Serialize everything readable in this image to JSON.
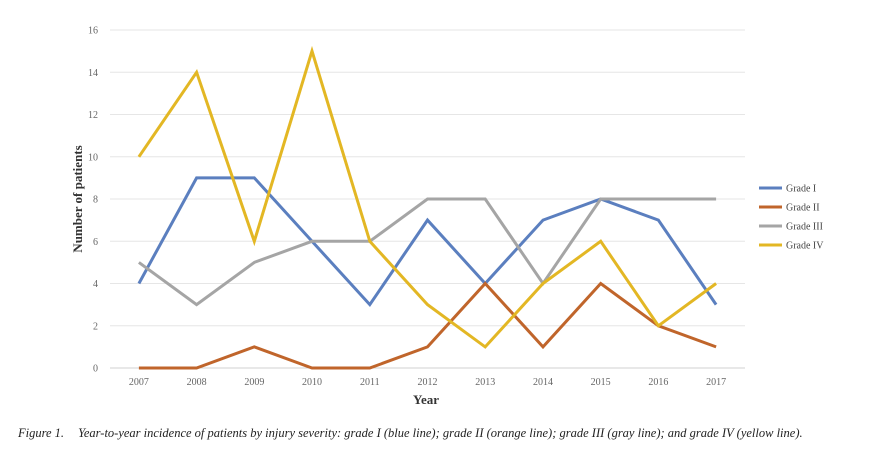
{
  "chart_data": {
    "type": "line",
    "xlabel": "Year",
    "ylabel": "Number of patients",
    "ylim": [
      0,
      16
    ],
    "yticks": [
      0,
      2,
      4,
      6,
      8,
      10,
      12,
      14,
      16
    ],
    "grid": "horizontal",
    "legend_position": "right",
    "categories": [
      "2007",
      "2008",
      "2009",
      "2010",
      "2011",
      "2012",
      "2013",
      "2014",
      "2015",
      "2016",
      "2017"
    ],
    "series": [
      {
        "name": "Grade I",
        "color": "#5b7fbf",
        "values": [
          4,
          9,
          9,
          6,
          3,
          7,
          4,
          7,
          8,
          7,
          3
        ]
      },
      {
        "name": "Grade II",
        "color": "#c0652b",
        "values": [
          0,
          0,
          1,
          0,
          0,
          1,
          4,
          1,
          4,
          2,
          1
        ]
      },
      {
        "name": "Grade III",
        "color": "#a5a5a5",
        "values": [
          5,
          3,
          5,
          6,
          6,
          8,
          8,
          4,
          8,
          8,
          8
        ]
      },
      {
        "name": "Grade IV",
        "color": "#e3b724",
        "values": [
          10,
          14,
          6,
          15,
          6,
          3,
          1,
          4,
          6,
          2,
          4
        ]
      }
    ]
  },
  "caption": {
    "label": "Figure 1.",
    "text": "Year-to-year incidence of patients by injury severity: grade I (blue line); grade II (orange line); grade III (gray line); and grade IV (yellow line)."
  }
}
